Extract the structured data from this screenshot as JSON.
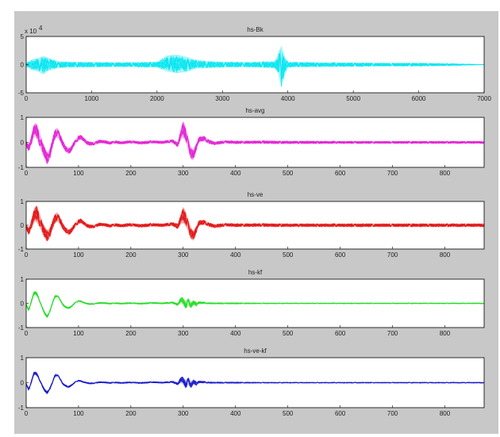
{
  "figure": {
    "background": "#c8c8c8",
    "axes_background": "#ffffff"
  },
  "chart_data": [
    {
      "type": "line",
      "title": "hs-Bk",
      "color": "#00e5f0",
      "y_multiplier_label": "x 10",
      "y_multiplier_exponent": "4",
      "xlim": [
        0,
        7000
      ],
      "ylim": [
        -5,
        5
      ],
      "xticks": [
        0,
        1000,
        2000,
        3000,
        4000,
        5000,
        6000,
        7000
      ],
      "yticks": [
        -5,
        0,
        5
      ],
      "series": [
        {
          "x": [
            0,
            100,
            200,
            260,
            320,
            380,
            500,
            700,
            1000,
            1500,
            2000,
            2150,
            2300,
            2450,
            2600,
            2800,
            3000,
            3400,
            3800,
            3850,
            3900,
            3950,
            4000,
            4500,
            5000,
            5500,
            6000,
            6500,
            6800,
            7000
          ],
          "upper": [
            0.3,
            1.0,
            1.2,
            1.6,
            1.3,
            1.0,
            0.6,
            0.5,
            0.45,
            0.4,
            0.5,
            1.6,
            1.8,
            1.4,
            0.8,
            0.6,
            0.5,
            0.45,
            0.6,
            2.0,
            3.5,
            1.5,
            0.5,
            0.4,
            0.35,
            0.3,
            0.3,
            0.2,
            0.1,
            0.0
          ],
          "lower": [
            -0.3,
            -1.0,
            -1.3,
            -1.8,
            -1.2,
            -0.9,
            -0.6,
            -0.5,
            -0.45,
            -0.4,
            -0.5,
            -1.2,
            -1.5,
            -1.3,
            -0.7,
            -0.6,
            -0.5,
            -0.45,
            -0.6,
            -1.5,
            -4.2,
            -2.0,
            -0.5,
            -0.4,
            -0.35,
            -0.3,
            -0.3,
            -0.2,
            -0.1,
            0.0
          ]
        }
      ]
    },
    {
      "type": "line",
      "title": "hs-avg",
      "color": "#e21ed2",
      "xlim": [
        0,
        875
      ],
      "ylim": [
        -1,
        1
      ],
      "xticks": [
        0,
        100,
        200,
        300,
        400,
        500,
        600,
        700,
        800
      ],
      "yticks": [
        -1,
        0,
        1
      ],
      "series": [
        {
          "x": [
            0,
            5,
            10,
            15,
            20,
            25,
            30,
            35,
            40,
            45,
            50,
            55,
            60,
            65,
            70,
            75,
            80,
            85,
            90,
            95,
            100,
            105,
            110,
            115,
            120,
            130,
            140,
            150,
            160,
            170,
            180,
            200,
            220,
            240,
            260,
            280,
            290,
            295,
            300,
            305,
            310,
            315,
            320,
            325,
            330,
            340,
            350,
            360,
            380,
            400,
            450,
            500,
            550,
            600,
            650,
            700,
            750,
            800,
            850,
            875
          ],
          "mid": [
            -0.05,
            -0.25,
            0.1,
            0.55,
            0.45,
            0.15,
            -0.15,
            -0.4,
            -0.65,
            -0.5,
            -0.05,
            0.35,
            0.4,
            0.2,
            -0.05,
            -0.25,
            -0.35,
            -0.3,
            -0.1,
            0.05,
            0.18,
            0.2,
            0.12,
            0.0,
            -0.05,
            -0.05,
            0.04,
            0.02,
            -0.03,
            0.02,
            -0.02,
            0.02,
            -0.02,
            0.02,
            0.0,
            0.05,
            -0.1,
            0.3,
            0.55,
            0.35,
            -0.1,
            -0.45,
            -0.5,
            -0.2,
            0.12,
            0.15,
            0.02,
            -0.04,
            0.02,
            0.0,
            0.01,
            0.0,
            0.0,
            0.0,
            0.0,
            0.0,
            0.0,
            0.0,
            0.0,
            0.0
          ],
          "spread": [
            0.1,
            0.15,
            0.2,
            0.25,
            0.3,
            0.3,
            0.25,
            0.25,
            0.25,
            0.2,
            0.2,
            0.2,
            0.2,
            0.15,
            0.15,
            0.12,
            0.12,
            0.12,
            0.1,
            0.1,
            0.1,
            0.1,
            0.08,
            0.08,
            0.08,
            0.07,
            0.07,
            0.07,
            0.06,
            0.06,
            0.06,
            0.06,
            0.06,
            0.06,
            0.06,
            0.07,
            0.1,
            0.2,
            0.35,
            0.3,
            0.25,
            0.25,
            0.2,
            0.15,
            0.12,
            0.1,
            0.08,
            0.07,
            0.06,
            0.06,
            0.06,
            0.06,
            0.06,
            0.05,
            0.05,
            0.05,
            0.05,
            0.05,
            0.05,
            0.05
          ]
        }
      ]
    },
    {
      "type": "line",
      "title": "hs-ve",
      "color": "#e01010",
      "xlim": [
        0,
        875
      ],
      "ylim": [
        -1,
        1
      ],
      "xticks": [
        0,
        100,
        200,
        300,
        400,
        500,
        600,
        700,
        800
      ],
      "yticks": [
        -1,
        0,
        1
      ],
      "series": [
        {
          "x": [
            0,
            5,
            10,
            15,
            20,
            25,
            30,
            35,
            40,
            45,
            50,
            55,
            60,
            65,
            70,
            75,
            80,
            85,
            90,
            95,
            100,
            105,
            110,
            115,
            120,
            130,
            140,
            150,
            160,
            170,
            180,
            200,
            220,
            240,
            260,
            280,
            290,
            295,
            300,
            305,
            310,
            315,
            320,
            325,
            330,
            340,
            350,
            360,
            380,
            400,
            450,
            500,
            550,
            600,
            650,
            700,
            750,
            800,
            850,
            875
          ],
          "mid": [
            -0.05,
            -0.3,
            0.05,
            0.45,
            0.5,
            0.25,
            -0.05,
            -0.3,
            -0.45,
            -0.35,
            0.0,
            0.3,
            0.35,
            0.2,
            -0.05,
            -0.2,
            -0.3,
            -0.25,
            -0.1,
            0.05,
            0.15,
            0.18,
            0.1,
            0.0,
            -0.05,
            -0.05,
            0.04,
            0.02,
            -0.03,
            0.02,
            -0.02,
            0.02,
            -0.02,
            0.02,
            0.0,
            0.05,
            -0.05,
            0.25,
            0.45,
            0.3,
            -0.05,
            -0.35,
            -0.45,
            -0.2,
            0.1,
            0.12,
            0.02,
            -0.04,
            0.02,
            0.0,
            0.01,
            0.0,
            0.0,
            0.0,
            0.0,
            0.0,
            0.0,
            0.0,
            0.0,
            0.0
          ],
          "spread": [
            0.1,
            0.15,
            0.2,
            0.3,
            0.35,
            0.3,
            0.25,
            0.25,
            0.25,
            0.2,
            0.2,
            0.2,
            0.2,
            0.15,
            0.15,
            0.12,
            0.12,
            0.12,
            0.1,
            0.1,
            0.1,
            0.1,
            0.08,
            0.08,
            0.08,
            0.07,
            0.07,
            0.07,
            0.07,
            0.07,
            0.07,
            0.07,
            0.07,
            0.07,
            0.07,
            0.08,
            0.12,
            0.2,
            0.35,
            0.3,
            0.25,
            0.25,
            0.2,
            0.15,
            0.12,
            0.1,
            0.08,
            0.08,
            0.07,
            0.07,
            0.07,
            0.07,
            0.07,
            0.07,
            0.07,
            0.07,
            0.07,
            0.07,
            0.07,
            0.07
          ]
        }
      ]
    },
    {
      "type": "line",
      "title": "hs-kf",
      "color": "#22dd22",
      "xlim": [
        0,
        875
      ],
      "ylim": [
        -1,
        1
      ],
      "xticks": [
        0,
        100,
        200,
        300,
        400,
        500,
        600,
        700,
        800
      ],
      "yticks": [
        -1,
        0,
        1
      ],
      "series": [
        {
          "x": [
            0,
            5,
            10,
            15,
            20,
            25,
            30,
            35,
            40,
            45,
            50,
            55,
            60,
            65,
            70,
            75,
            80,
            85,
            90,
            95,
            100,
            105,
            110,
            115,
            120,
            130,
            140,
            150,
            160,
            170,
            180,
            200,
            220,
            240,
            260,
            280,
            290,
            295,
            300,
            305,
            310,
            315,
            320,
            325,
            330,
            340,
            350,
            360,
            380,
            400,
            450,
            500,
            550,
            600,
            650,
            700,
            750,
            800,
            850,
            875
          ],
          "mid": [
            -0.05,
            -0.3,
            0.1,
            0.45,
            0.4,
            0.15,
            -0.15,
            -0.4,
            -0.55,
            -0.35,
            0.0,
            0.3,
            0.3,
            0.15,
            -0.05,
            -0.15,
            -0.2,
            -0.15,
            -0.05,
            0.05,
            0.1,
            0.08,
            0.03,
            0.0,
            -0.03,
            -0.02,
            0.02,
            0.01,
            -0.01,
            0.01,
            -0.01,
            0.01,
            -0.01,
            0.02,
            0.0,
            0.03,
            -0.05,
            0.15,
            0.1,
            -0.1,
            0.1,
            -0.1,
            0.05,
            -0.05,
            0.03,
            0.02,
            0.0,
            0.0,
            0.0,
            0.0,
            0.0,
            0.0,
            0.0,
            0.0,
            0.0,
            0.0,
            0.0,
            0.0,
            0.0,
            0.0
          ],
          "spread": [
            0.04,
            0.05,
            0.06,
            0.08,
            0.08,
            0.06,
            0.06,
            0.06,
            0.06,
            0.05,
            0.05,
            0.05,
            0.05,
            0.04,
            0.04,
            0.04,
            0.04,
            0.04,
            0.03,
            0.03,
            0.03,
            0.03,
            0.03,
            0.03,
            0.03,
            0.03,
            0.03,
            0.03,
            0.03,
            0.03,
            0.03,
            0.03,
            0.03,
            0.03,
            0.03,
            0.04,
            0.05,
            0.12,
            0.15,
            0.15,
            0.15,
            0.12,
            0.1,
            0.08,
            0.05,
            0.04,
            0.03,
            0.03,
            0.03,
            0.03,
            0.02,
            0.02,
            0.02,
            0.02,
            0.02,
            0.02,
            0.02,
            0.02,
            0.02,
            0.02
          ]
        }
      ]
    },
    {
      "type": "line",
      "title": "hs-ve-kf",
      "color": "#1818c8",
      "xlim": [
        0,
        875
      ],
      "ylim": [
        -1,
        1
      ],
      "xticks": [
        0,
        100,
        200,
        300,
        400,
        500,
        600,
        700,
        800
      ],
      "yticks": [
        -1,
        0,
        1
      ],
      "series": [
        {
          "x": [
            0,
            5,
            10,
            15,
            20,
            25,
            30,
            35,
            40,
            45,
            50,
            55,
            60,
            65,
            70,
            75,
            80,
            85,
            90,
            95,
            100,
            105,
            110,
            115,
            120,
            130,
            140,
            150,
            160,
            170,
            180,
            200,
            220,
            240,
            260,
            280,
            290,
            295,
            300,
            305,
            310,
            315,
            320,
            325,
            330,
            340,
            350,
            360,
            380,
            400,
            450,
            500,
            550,
            600,
            650,
            700,
            750,
            800,
            850,
            875
          ],
          "mid": [
            -0.05,
            -0.3,
            0.05,
            0.4,
            0.35,
            0.15,
            -0.1,
            -0.3,
            -0.4,
            -0.25,
            0.0,
            0.3,
            0.3,
            0.15,
            -0.05,
            -0.12,
            -0.18,
            -0.12,
            -0.05,
            0.05,
            0.08,
            0.06,
            0.02,
            0.0,
            -0.03,
            -0.02,
            0.02,
            0.01,
            -0.01,
            0.01,
            -0.01,
            0.01,
            -0.01,
            0.02,
            0.0,
            0.03,
            -0.05,
            0.12,
            0.1,
            -0.1,
            0.1,
            -0.12,
            0.05,
            -0.05,
            0.03,
            0.02,
            0.0,
            0.0,
            0.0,
            0.0,
            0.0,
            0.0,
            0.0,
            0.0,
            0.0,
            0.0,
            0.0,
            0.0,
            0.0,
            0.0
          ],
          "spread": [
            0.04,
            0.05,
            0.06,
            0.07,
            0.07,
            0.06,
            0.06,
            0.06,
            0.06,
            0.05,
            0.05,
            0.05,
            0.05,
            0.04,
            0.04,
            0.04,
            0.04,
            0.04,
            0.03,
            0.03,
            0.03,
            0.03,
            0.03,
            0.03,
            0.03,
            0.03,
            0.03,
            0.03,
            0.03,
            0.03,
            0.03,
            0.03,
            0.03,
            0.03,
            0.03,
            0.04,
            0.05,
            0.12,
            0.15,
            0.15,
            0.15,
            0.12,
            0.1,
            0.08,
            0.05,
            0.04,
            0.03,
            0.03,
            0.03,
            0.03,
            0.02,
            0.02,
            0.02,
            0.02,
            0.02,
            0.02,
            0.02,
            0.02,
            0.02,
            0.02
          ]
        }
      ]
    }
  ]
}
